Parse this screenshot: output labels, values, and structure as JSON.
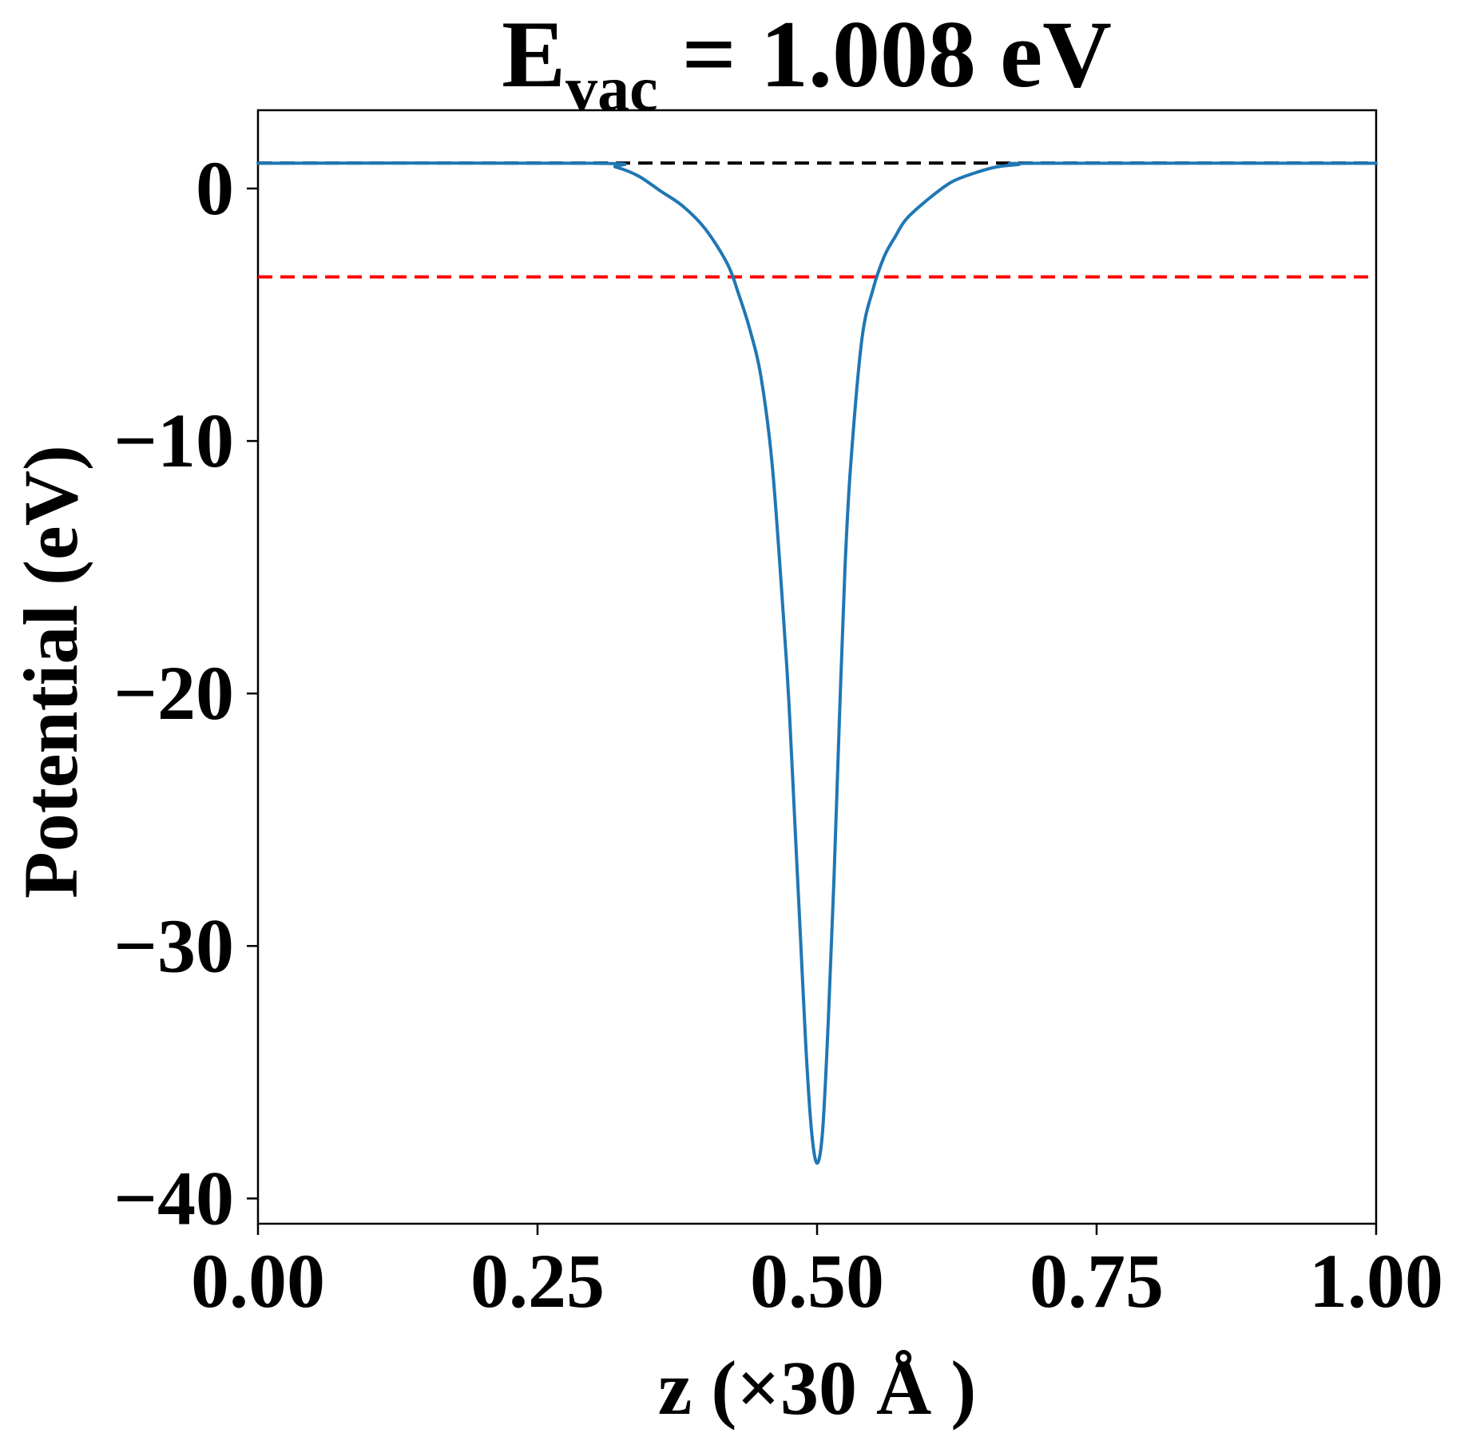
{
  "chart_data": {
    "type": "line",
    "title": {
      "main": "E",
      "subscript": "vac",
      "rest": " = 1.008 eV"
    },
    "xlabel": "z (×30 Å )",
    "ylabel": "Potential (eV)",
    "xlim": [
      0.0,
      1.0
    ],
    "ylim": [
      -41,
      3.1
    ],
    "xticks": [
      0.0,
      0.25,
      0.5,
      0.75,
      1.0
    ],
    "xtick_labels": [
      "0.00",
      "0.25",
      "0.50",
      "0.75",
      "1.00"
    ],
    "yticks": [
      0,
      -10,
      -20,
      -30,
      -40
    ],
    "ytick_labels": [
      "0",
      "−10",
      "−20",
      "−30",
      "−40"
    ],
    "grid": false,
    "reference_lines": [
      {
        "y": 1.008,
        "color": "#000000",
        "style": "dashed"
      },
      {
        "y": -3.5,
        "color": "#ff0000",
        "style": "dashed"
      }
    ],
    "series": [
      {
        "color": "#1f77b4",
        "x": [
          0.0,
          0.3,
          0.32,
          0.34,
          0.36,
          0.38,
          0.4,
          0.42,
          0.43,
          0.44,
          0.45,
          0.46,
          0.47,
          0.475,
          0.48,
          0.485,
          0.49,
          0.495,
          0.5,
          0.505,
          0.51,
          0.515,
          0.52,
          0.525,
          0.53,
          0.54,
          0.55,
          0.56,
          0.57,
          0.58,
          0.6,
          0.62,
          0.64,
          0.66,
          0.68,
          0.7,
          1.0
        ],
        "y": [
          1.0,
          1.0,
          0.85,
          0.5,
          -0.1,
          -0.7,
          -1.6,
          -3.0,
          -4.2,
          -5.6,
          -7.5,
          -11.0,
          -17.0,
          -20.5,
          -25.0,
          -29.5,
          -34.0,
          -37.3,
          -38.6,
          -37.3,
          -33.0,
          -27.5,
          -21.0,
          -15.0,
          -11.0,
          -6.0,
          -4.0,
          -2.7,
          -1.9,
          -1.2,
          -0.4,
          0.25,
          0.6,
          0.85,
          0.95,
          1.0,
          1.0
        ]
      }
    ]
  }
}
